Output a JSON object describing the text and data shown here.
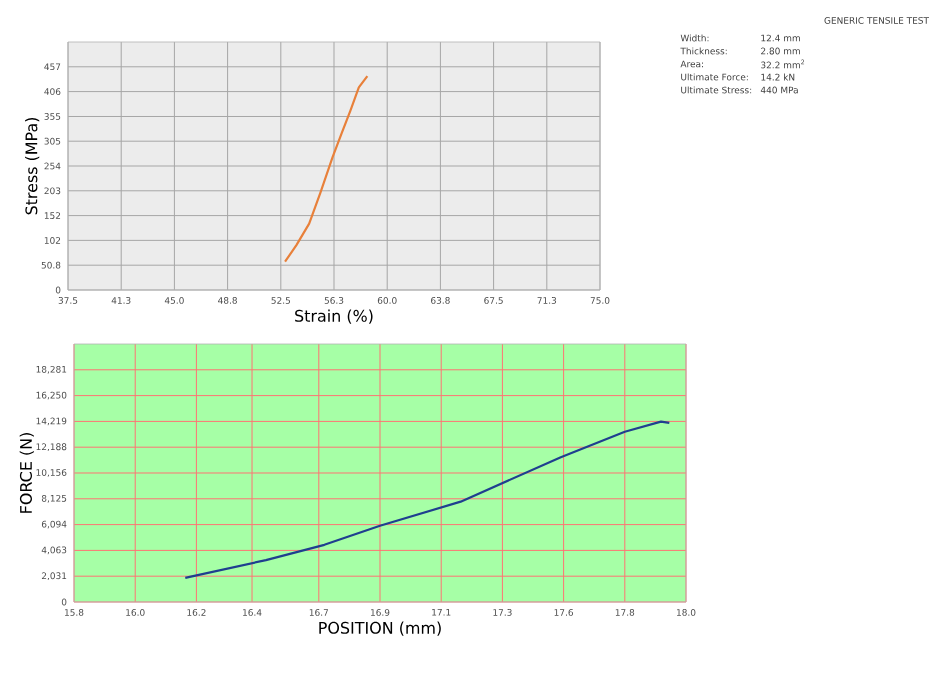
{
  "chart_data": [
    {
      "type": "line",
      "xlabel": "Strain (%)",
      "ylabel": "Stress (MPa)",
      "grid": true,
      "xlim": [
        37.5,
        75
      ],
      "ylim": [
        0,
        508
      ],
      "xticks": [
        37.5,
        {
          "value": 41.25,
          "label": "41.3"
        },
        {
          "value": 45,
          "label": "45.0"
        },
        {
          "value": 48.75,
          "label": "48.8"
        },
        52.5,
        {
          "value": 56.25,
          "label": "56.3"
        },
        {
          "value": 60,
          "label": "60.0"
        },
        {
          "value": 63.75,
          "label": "63.8"
        },
        67.5,
        {
          "value": 71.25,
          "label": "71.3"
        },
        {
          "value": 75,
          "label": "75.0"
        }
      ],
      "yticks": [
        0,
        50.8,
        {
          "value": 101.6,
          "label": "102"
        },
        {
          "value": 152.4,
          "label": "152"
        },
        {
          "value": 203.2,
          "label": "203"
        },
        254,
        {
          "value": 304.8,
          "label": "305"
        },
        {
          "value": 355.4,
          "label": "355"
        },
        {
          "value": 406.4,
          "label": "406"
        },
        {
          "value": 457.2,
          "label": "457"
        }
      ],
      "series": [
        {
          "color": "#e8803a",
          "x": [
            52.8,
            53.6,
            54.5,
            55.3,
            56.15,
            56.8,
            57.4,
            58.0,
            58.6
          ],
          "values": [
            58,
            92,
            136,
            200,
            272,
            322,
            367,
            415,
            438
          ]
        }
      ]
    },
    {
      "type": "line",
      "xlabel": "POSITION (mm)",
      "ylabel": "FORCE (N)",
      "grid": true,
      "xlim": [
        15.8,
        18.0
      ],
      "ylim": [
        0,
        20312
      ],
      "xticks": [
        15.8,
        {
          "value": 16.02,
          "label": "16.0"
        },
        {
          "value": 16.24,
          "label": "16.2"
        },
        {
          "value": 16.44,
          "label": "16.4"
        },
        {
          "value": 16.68,
          "label": "16.7"
        },
        16.9,
        {
          "value": 17.12,
          "label": "17.1"
        },
        {
          "value": 17.34,
          "label": "17.3"
        },
        {
          "value": 17.56,
          "label": "17.6"
        },
        {
          "value": 17.78,
          "label": "17.8"
        },
        {
          "value": 18.0,
          "label": "18.0"
        }
      ],
      "yticks": [
        0,
        {
          "value": 2031.2,
          "label": "2,031"
        },
        {
          "value": 4062.6,
          "label": "4,063"
        },
        {
          "value": 6093.6,
          "label": "6,094"
        },
        {
          "value": 8124.8,
          "label": "8,125"
        },
        {
          "value": 10156,
          "label": "10,156"
        },
        {
          "value": 12187.6,
          "label": "12,188"
        },
        {
          "value": 14218.6,
          "label": "14,219"
        },
        {
          "value": 16249.6,
          "label": "16,250"
        },
        {
          "value": 18280.8,
          "label": "18,281"
        }
      ],
      "series": [
        {
          "color": "#1f3f8f",
          "x": [
            16.2,
            16.22,
            16.49,
            16.7,
            16.9,
            17.19,
            17.55,
            17.78,
            17.91,
            17.94
          ],
          "values": [
            1900,
            2000,
            3300,
            4500,
            6000,
            7900,
            11400,
            13400,
            14200,
            14100
          ]
        }
      ]
    },
    {
      "type": "other",
      "title": "GENERIC TENSILE TEST",
      "annotations": [
        "Width:",
        "12.4 mm",
        "Thickness:",
        "2.80 mm",
        "Area:",
        "32.2 mm$^{2}$",
        "Ultimate Force:",
        "14.2 kN",
        "Ultimate Stress:",
        "440 MPa"
      ]
    }
  ]
}
